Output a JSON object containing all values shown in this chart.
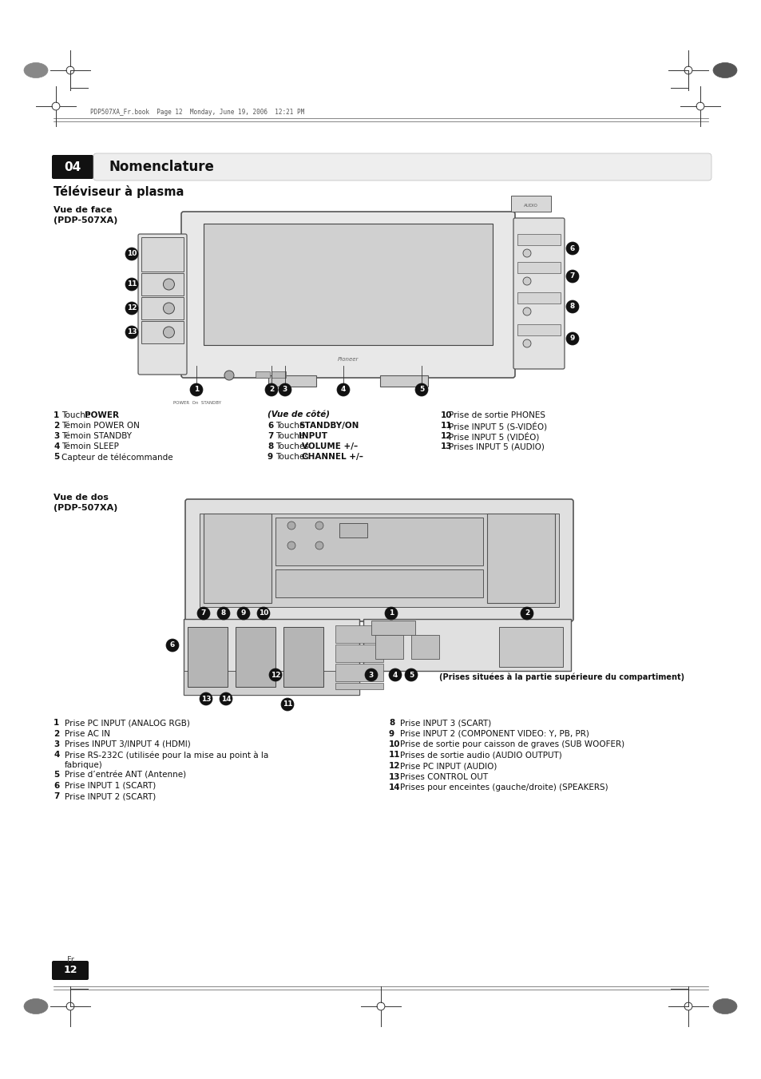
{
  "page_bg": "#ffffff",
  "header_text": "PDP507XA_Fr.book  Page 12  Monday, June 19, 2006  12:21 PM",
  "chapter_num": "04",
  "chapter_title": "Nomenclature",
  "section_title": "Téléviseur à plasma",
  "front_view_label": "Vue de face\n(PDP-507XA)",
  "back_view_label": "Vue de dos\n(PDP-507XA)",
  "side_label": "(Vue de côté)",
  "front_items": [
    {
      "num": "1",
      "text": "Touche ",
      "bold": "POWER"
    },
    {
      "num": "2",
      "text": "Témoin POWER ON",
      "bold": ""
    },
    {
      "num": "3",
      "text": "Témoin STANDBY",
      "bold": ""
    },
    {
      "num": "4",
      "text": "Témoin SLEEP",
      "bold": ""
    },
    {
      "num": "5",
      "text": "Capteur de télécommande",
      "bold": ""
    }
  ],
  "side_items": [
    {
      "num": "6",
      "text": "Touche ",
      "bold": "STANDBY/ON"
    },
    {
      "num": "7",
      "text": "Touche ",
      "bold": "INPUT"
    },
    {
      "num": "8",
      "text": "Touches ",
      "bold": "VOLUME +/–"
    },
    {
      "num": "9",
      "text": "Touches ",
      "bold": "CHANNEL +/–"
    }
  ],
  "right_items_front": [
    {
      "num": "10",
      "text": "Prise de sortie PHONES"
    },
    {
      "num": "11",
      "text": "Prise INPUT 5 (S-VIDÉO)"
    },
    {
      "num": "12",
      "text": "Prise INPUT 5 (VIDÉO)"
    },
    {
      "num": "13",
      "text": "Prises INPUT 5 (AUDIO)"
    }
  ],
  "back_items_left": [
    {
      "num": "1",
      "text": "Prise PC INPUT (ANALOG RGB)"
    },
    {
      "num": "2",
      "text": "Prise AC IN"
    },
    {
      "num": "3",
      "text": "Prises INPUT 3/INPUT 4 (HDMI)"
    },
    {
      "num": "4",
      "text": "Prise RS-232C (utilisée pour la mise au point à la\nfabrique)"
    },
    {
      "num": "5",
      "text": "Prise d’entrée ANT (Antenne)"
    },
    {
      "num": "6",
      "text": "Prise INPUT 1 (SCART)"
    },
    {
      "num": "7",
      "text": "Prise INPUT 2 (SCART)"
    }
  ],
  "back_items_right": [
    {
      "num": "8",
      "text": "Prise INPUT 3 (SCART)"
    },
    {
      "num": "9",
      "text": "Prise INPUT 2 (COMPONENT VIDEO: Y, PB, PR)"
    },
    {
      "num": "10",
      "text": "Prise de sortie pour caisson de graves (SUB WOOFER)"
    },
    {
      "num": "11",
      "text": "Prises de sortie audio (AUDIO OUTPUT)"
    },
    {
      "num": "12",
      "text": "Prise PC INPUT (AUDIO)"
    },
    {
      "num": "13",
      "text": "Prises CONTROL OUT"
    },
    {
      "num": "14",
      "text": "Prises pour enceintes (gauche/droite) (SPEAKERS)"
    }
  ],
  "compartment_note": "(Prises situées à la partie supérieure du compartiment)",
  "page_num": "12",
  "page_lang": "Fr"
}
